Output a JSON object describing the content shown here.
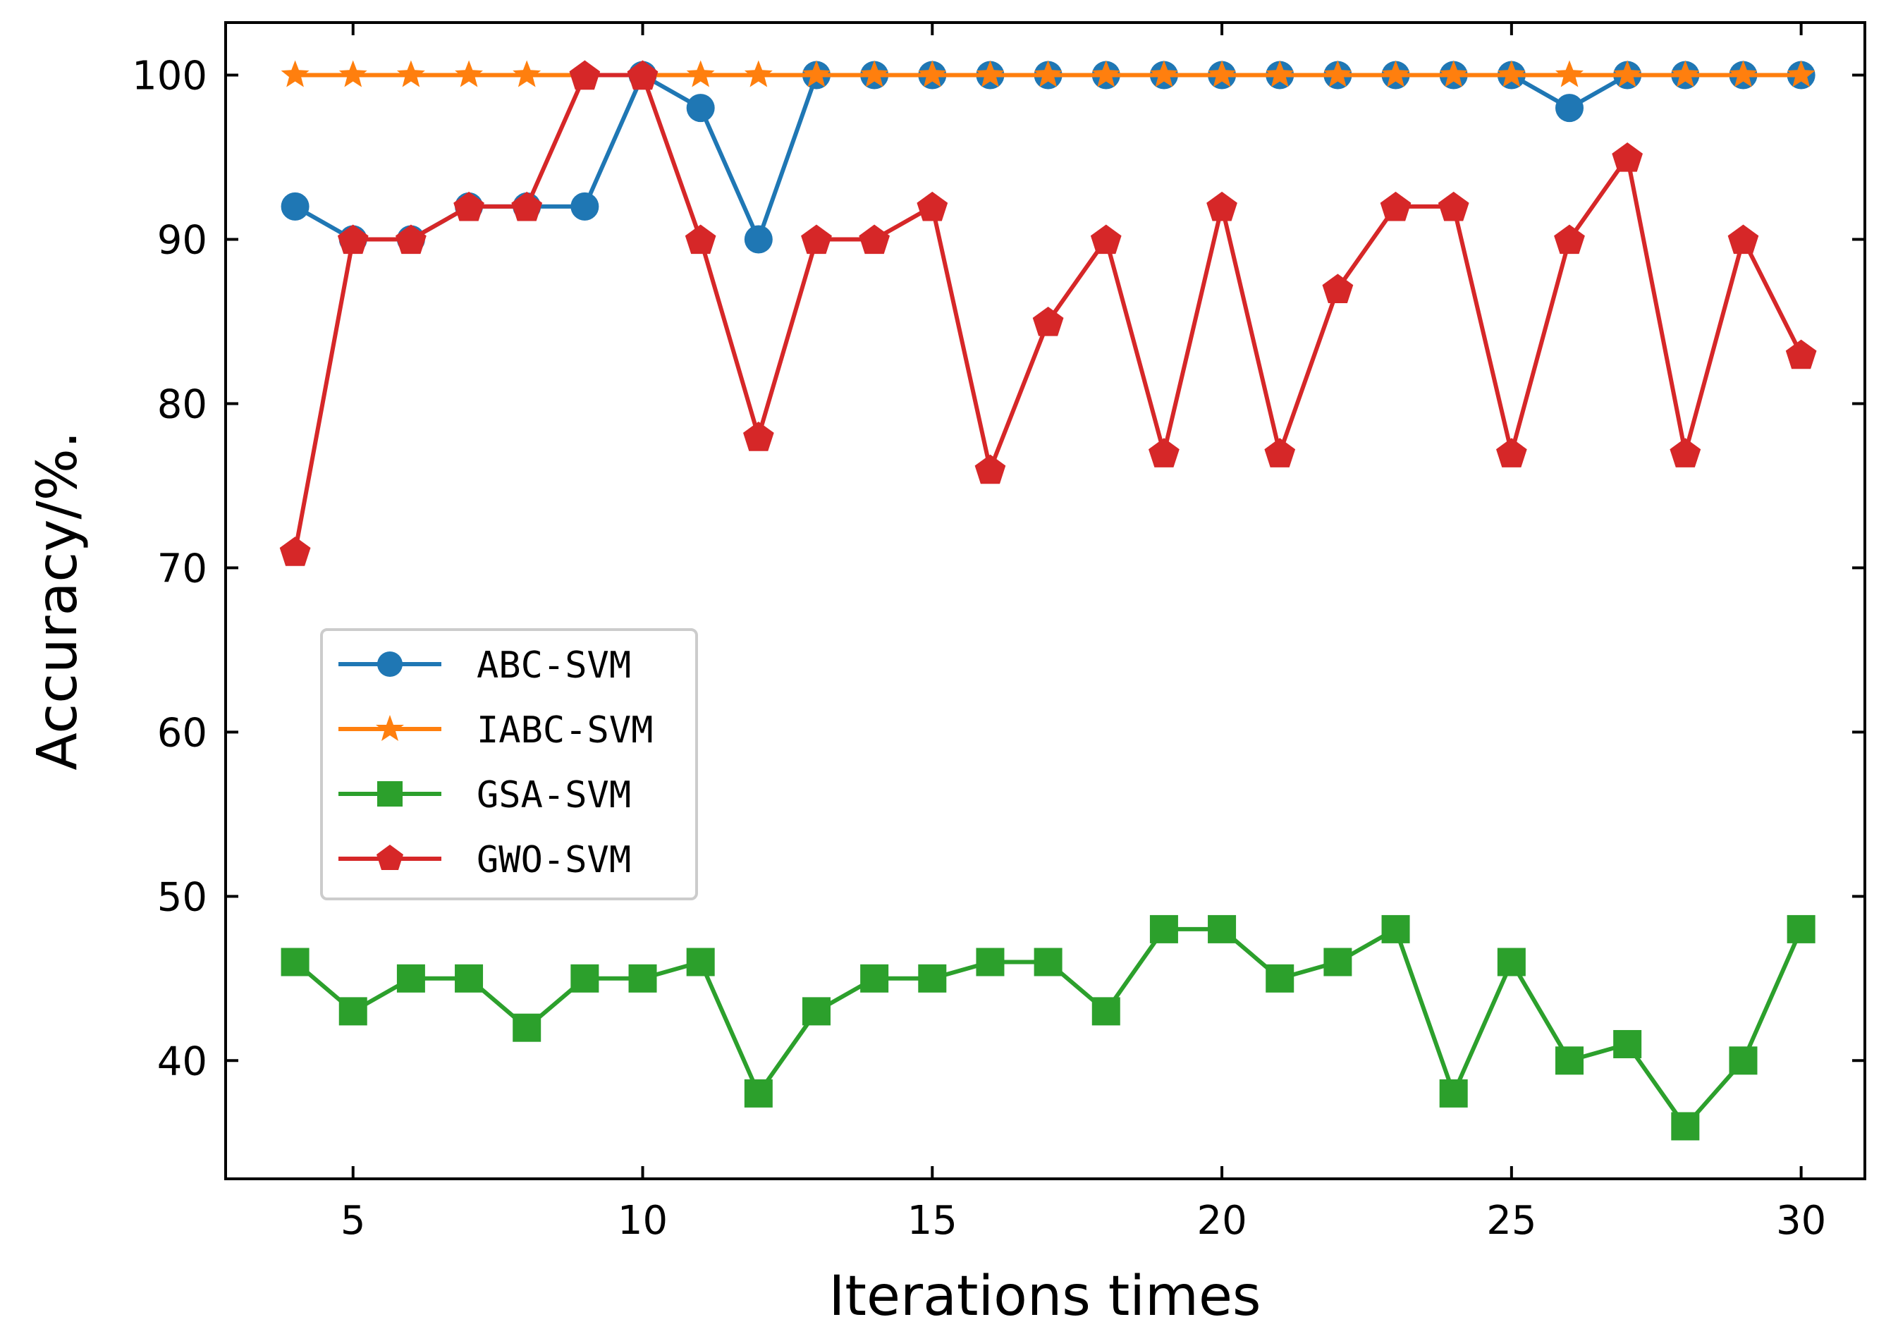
{
  "chart_data": {
    "type": "line",
    "title": "",
    "xlabel": "Iterations times",
    "ylabel": "Accuracy/%.",
    "xlim": [
      2.8,
      31.1
    ],
    "ylim": [
      32.8,
      103.2
    ],
    "xticks": [
      5,
      10,
      15,
      20,
      25,
      30
    ],
    "yticks": [
      40,
      50,
      60,
      70,
      80,
      90,
      100
    ],
    "grid": false,
    "legend_position": "center-left",
    "x": [
      4,
      5,
      6,
      7,
      8,
      9,
      10,
      11,
      12,
      13,
      14,
      15,
      16,
      17,
      18,
      19,
      20,
      21,
      22,
      23,
      24,
      25,
      26,
      27,
      28,
      29,
      30
    ],
    "series": [
      {
        "name": "ABC-SVM",
        "color": "#1f77b4",
        "marker": "circle",
        "values": [
          92,
          90,
          90,
          92,
          92,
          92,
          100,
          98,
          90,
          100,
          100,
          100,
          100,
          100,
          100,
          100,
          100,
          100,
          100,
          100,
          100,
          100,
          98,
          100,
          100,
          100,
          100
        ]
      },
      {
        "name": "IABC-SVM",
        "color": "#ff7f0e",
        "marker": "star",
        "values": [
          100,
          100,
          100,
          100,
          100,
          100,
          100,
          100,
          100,
          100,
          100,
          100,
          100,
          100,
          100,
          100,
          100,
          100,
          100,
          100,
          100,
          100,
          100,
          100,
          100,
          100,
          100
        ]
      },
      {
        "name": "GSA-SVM",
        "color": "#2ca02c",
        "marker": "square",
        "values": [
          46,
          43,
          45,
          45,
          42,
          45,
          45,
          46,
          38,
          43,
          45,
          45,
          46,
          46,
          43,
          48,
          48,
          45,
          46,
          48,
          38,
          46,
          40,
          41,
          36,
          40,
          48
        ]
      },
      {
        "name": "GWO-SVM",
        "color": "#d62728",
        "marker": "pentagon",
        "values": [
          71,
          90,
          90,
          92,
          92,
          100,
          100,
          90,
          78,
          90,
          90,
          92,
          76,
          85,
          90,
          77,
          92,
          77,
          87,
          92,
          92,
          77,
          90,
          95,
          77,
          90,
          83
        ]
      }
    ]
  }
}
